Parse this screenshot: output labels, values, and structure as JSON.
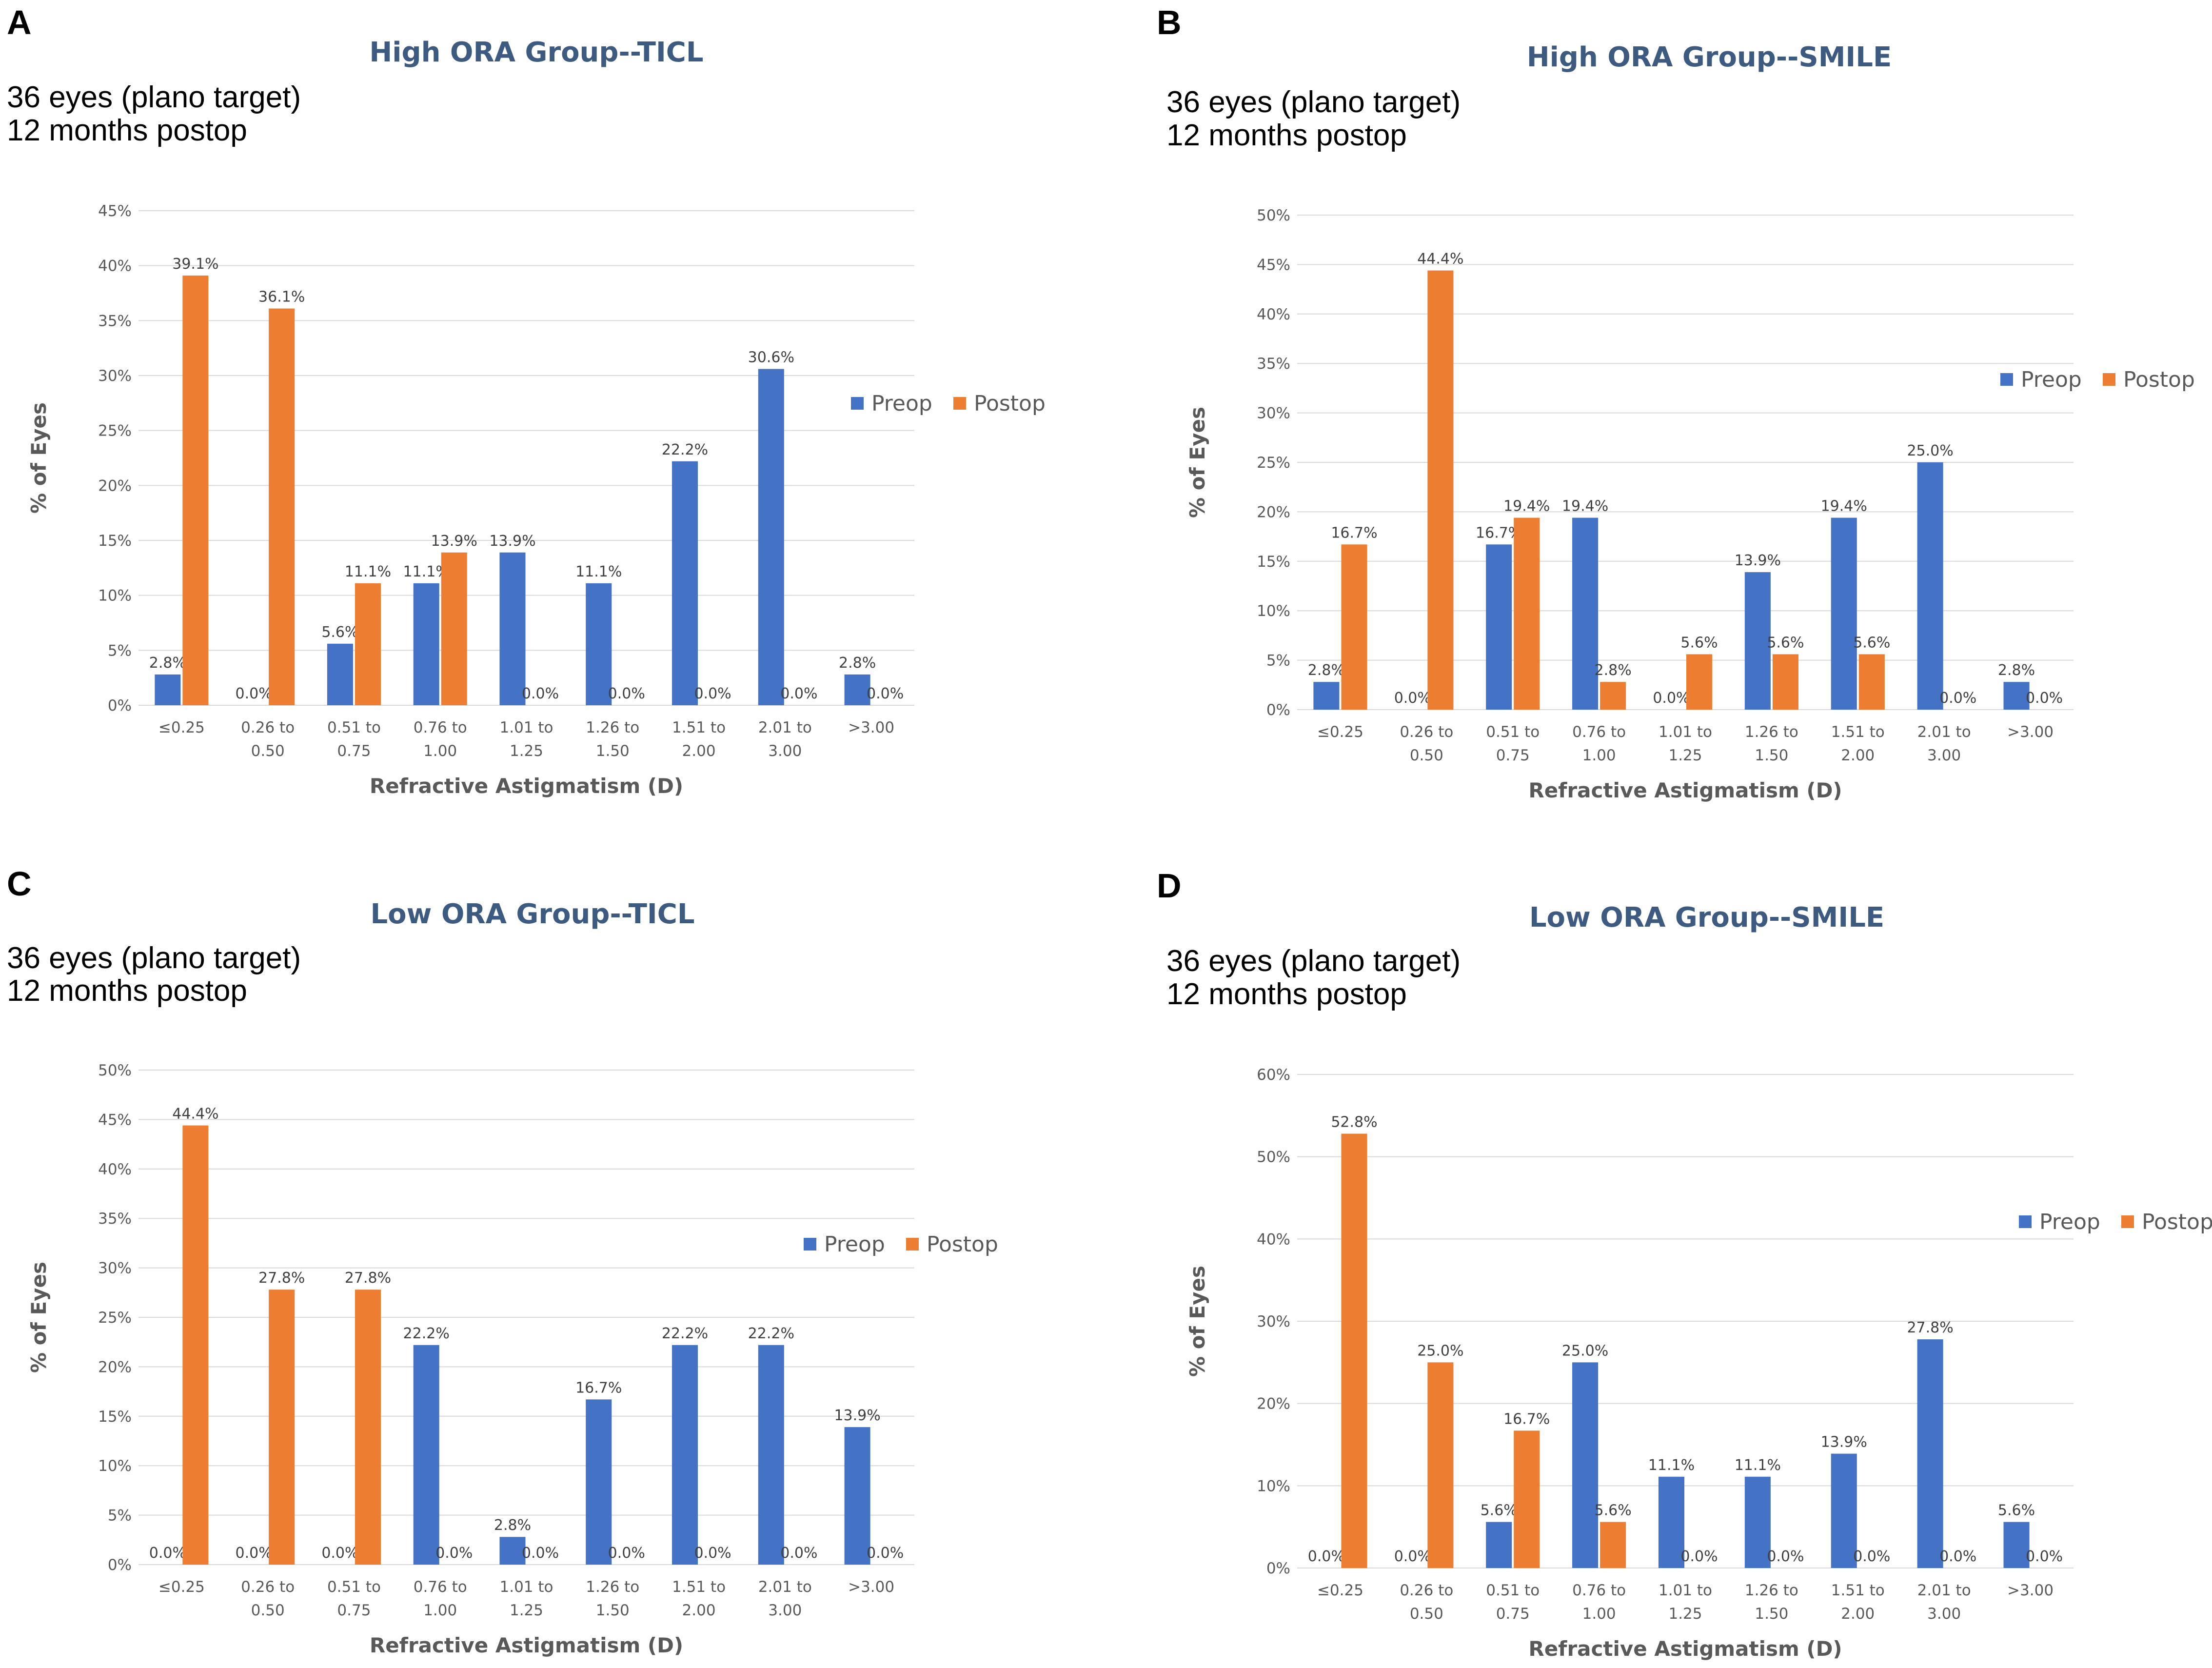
{
  "colors": {
    "preop": "#4472c4",
    "postop": "#ed7d31",
    "title": "#3d5a80"
  },
  "legend": {
    "preop": "Preop",
    "postop": "Postop"
  },
  "chart_data": [
    {
      "panel": "A",
      "type": "bar",
      "title": "High ORA Group--TICL",
      "subtitle_lines": [
        "36 eyes (plano target)",
        "12 months postop"
      ],
      "xlabel": "Refractive Astigmatism (D)",
      "ylabel": "% of Eyes",
      "ylim": [
        0,
        45
      ],
      "ytick_step": 5,
      "categories": [
        [
          "≤0.25"
        ],
        [
          "0.26 to",
          "0.50"
        ],
        [
          "0.51 to",
          "0.75"
        ],
        [
          "0.76 to",
          "1.00"
        ],
        [
          "1.01 to",
          "1.25"
        ],
        [
          "1.26 to",
          "1.50"
        ],
        [
          "1.51 to",
          "2.00"
        ],
        [
          "2.01 to",
          "3.00"
        ],
        [
          ">3.00"
        ]
      ],
      "series": [
        {
          "name": "Preop",
          "values": [
            2.8,
            0.0,
            5.6,
            11.1,
            13.9,
            11.1,
            22.2,
            30.6,
            2.8
          ]
        },
        {
          "name": "Postop",
          "values": [
            39.1,
            36.1,
            11.1,
            13.9,
            0.0,
            0.0,
            0.0,
            0.0,
            0.0
          ]
        }
      ]
    },
    {
      "panel": "B",
      "type": "bar",
      "title": "High ORA Group--SMILE",
      "subtitle_lines": [
        "36 eyes (plano target)",
        "12 months postop"
      ],
      "xlabel": "Refractive Astigmatism (D)",
      "ylabel": "% of Eyes",
      "ylim": [
        0,
        50
      ],
      "ytick_step": 5,
      "categories": [
        [
          "≤0.25"
        ],
        [
          "0.26 to",
          "0.50"
        ],
        [
          "0.51 to",
          "0.75"
        ],
        [
          "0.76 to",
          "1.00"
        ],
        [
          "1.01 to",
          "1.25"
        ],
        [
          "1.26 to",
          "1.50"
        ],
        [
          "1.51 to",
          "2.00"
        ],
        [
          "2.01 to",
          "3.00"
        ],
        [
          ">3.00"
        ]
      ],
      "series": [
        {
          "name": "Preop",
          "values": [
            2.8,
            0.0,
            16.7,
            19.4,
            0.0,
            13.9,
            19.4,
            25.0,
            2.8
          ]
        },
        {
          "name": "Postop",
          "values": [
            16.7,
            44.4,
            19.4,
            2.8,
            5.6,
            5.6,
            5.6,
            0.0,
            0.0
          ]
        }
      ]
    },
    {
      "panel": "C",
      "type": "bar",
      "title": "Low ORA Group--TICL",
      "subtitle_lines": [
        "36 eyes (plano target)",
        "12 months postop"
      ],
      "xlabel": "Refractive Astigmatism (D)",
      "ylabel": "% of Eyes",
      "ylim": [
        0,
        50
      ],
      "ytick_step": 5,
      "categories": [
        [
          "≤0.25"
        ],
        [
          "0.26 to",
          "0.50"
        ],
        [
          "0.51 to",
          "0.75"
        ],
        [
          "0.76 to",
          "1.00"
        ],
        [
          "1.01 to",
          "1.25"
        ],
        [
          "1.26 to",
          "1.50"
        ],
        [
          "1.51 to",
          "2.00"
        ],
        [
          "2.01 to",
          "3.00"
        ],
        [
          ">3.00"
        ]
      ],
      "series": [
        {
          "name": "Preop",
          "values": [
            0.0,
            0.0,
            0.0,
            22.2,
            2.8,
            16.7,
            22.2,
            22.2,
            13.9
          ]
        },
        {
          "name": "Postop",
          "values": [
            44.4,
            27.8,
            27.8,
            0.0,
            0.0,
            0.0,
            0.0,
            0.0,
            0.0
          ]
        }
      ]
    },
    {
      "panel": "D",
      "type": "bar",
      "title": "Low ORA Group--SMILE",
      "subtitle_lines": [
        "36 eyes (plano target)",
        "12 months postop"
      ],
      "xlabel": "Refractive Astigmatism (D)",
      "ylabel": "% of Eyes",
      "ylim": [
        0,
        60
      ],
      "ytick_step": 10,
      "categories": [
        [
          "≤0.25"
        ],
        [
          "0.26 to",
          "0.50"
        ],
        [
          "0.51 to",
          "0.75"
        ],
        [
          "0.76 to",
          "1.00"
        ],
        [
          "1.01 to",
          "1.25"
        ],
        [
          "1.26 to",
          "1.50"
        ],
        [
          "1.51 to",
          "2.00"
        ],
        [
          "2.01 to",
          "3.00"
        ],
        [
          ">3.00"
        ]
      ],
      "series": [
        {
          "name": "Preop",
          "values": [
            0.0,
            0.0,
            5.6,
            25.0,
            11.1,
            11.1,
            13.9,
            27.8,
            5.6
          ]
        },
        {
          "name": "Postop",
          "values": [
            52.8,
            25.0,
            16.7,
            5.6,
            0.0,
            0.0,
            0.0,
            0.0,
            0.0
          ]
        }
      ]
    }
  ]
}
